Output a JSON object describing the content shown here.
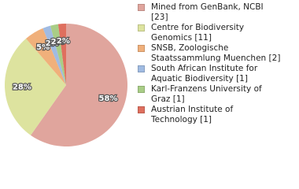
{
  "chart_data": {
    "type": "pie",
    "categories": [
      "Mined from GenBank, NCBI [23]",
      "Centre for Biodiversity Genomics [11]",
      "SNSB, Zoologische Staatssammlung Muenchen [2]",
      "South African Institute for Aquatic Biodiversity [1]",
      "Karl-Franzens University of Graz [1]",
      "Austrian Institute of Technology [1]"
    ],
    "values": [
      58,
      28,
      5,
      2,
      2,
      2
    ],
    "value_labels": [
      "58%",
      "28%",
      "5%",
      "2%",
      "2%",
      "2%"
    ],
    "colors": [
      "#e0a59d",
      "#dde39f",
      "#f0b07b",
      "#a0bbe2",
      "#a9cd86",
      "#df6f5e"
    ]
  }
}
